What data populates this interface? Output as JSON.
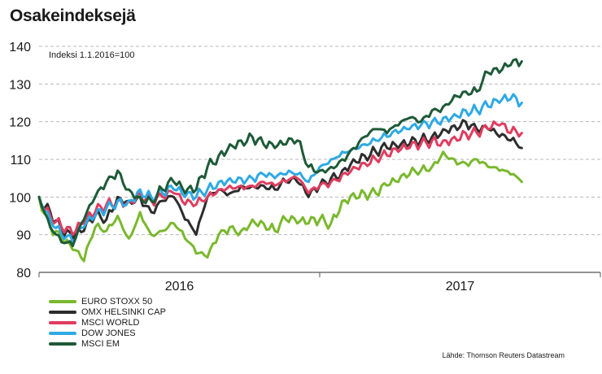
{
  "title": "Osakeindeksejä",
  "note": "Indeksi 1.1.2016=100",
  "source": "Lähde: Thomson Reuters Datastream",
  "chart_data": {
    "type": "line",
    "title": "Osakeindeksejä",
    "subtitle": "Indeksi 1.1.2016=100",
    "xlabel": "",
    "ylabel": "",
    "x_tick_labels": [
      "2016",
      "2017"
    ],
    "x_range": [
      0,
      2
    ],
    "y_ticks": [
      80,
      90,
      100,
      110,
      120,
      130,
      140
    ],
    "ylim": [
      80,
      140
    ],
    "grid": true,
    "legend_position": "bottom-left",
    "x": [
      0,
      0.04,
      0.08,
      0.12,
      0.16,
      0.2,
      0.24,
      0.28,
      0.32,
      0.36,
      0.4,
      0.44,
      0.48,
      0.52,
      0.56,
      0.6,
      0.64,
      0.68,
      0.72,
      0.76,
      0.8,
      0.84,
      0.88,
      0.92,
      0.96,
      1.0,
      1.04,
      1.08,
      1.12,
      1.16,
      1.2,
      1.24,
      1.28,
      1.32,
      1.36,
      1.4,
      1.44,
      1.48,
      1.52,
      1.56,
      1.6,
      1.64,
      1.68,
      1.72
    ],
    "series": [
      {
        "name": "EURO STOXX 50",
        "color": "#7ab82e",
        "values": [
          100,
          92,
          89,
          86,
          83,
          92,
          91,
          95,
          89,
          96,
          90,
          91,
          93,
          89,
          85,
          84,
          90,
          92,
          91,
          94,
          93,
          91,
          94,
          93,
          93,
          94,
          93,
          99,
          101,
          101,
          101,
          103,
          104,
          106,
          107,
          108,
          112,
          110,
          109,
          110,
          108,
          107,
          106,
          104
        ]
      },
      {
        "name": "OMX HELSINKI CAP",
        "color": "#2d2d2d",
        "values": [
          100,
          96,
          91,
          89,
          91,
          95,
          94,
          100,
          99,
          100,
          96,
          99,
          100,
          94,
          90,
          100,
          102,
          101,
          103,
          103,
          103,
          102,
          104,
          104,
          100,
          103,
          105,
          107,
          110,
          111,
          112,
          113,
          113,
          114,
          115,
          116,
          118,
          119,
          120,
          118,
          118,
          116,
          115,
          113
        ]
      },
      {
        "name": "MSCI WORLD",
        "color": "#e03c5f",
        "values": [
          100,
          95,
          92,
          90,
          93,
          96,
          98,
          99,
          99,
          101,
          99,
          100,
          101,
          98,
          98,
          100,
          102,
          103,
          103,
          103,
          104,
          103,
          104,
          105,
          101,
          103,
          104,
          106,
          108,
          109,
          110,
          111,
          112,
          113,
          114,
          115,
          115,
          116,
          117,
          117,
          118,
          119,
          117,
          117
        ]
      },
      {
        "name": "DOW JONES",
        "color": "#2fa9e3",
        "values": [
          100,
          94,
          90,
          88,
          92,
          95,
          97,
          99,
          99,
          102,
          100,
          101,
          102,
          100,
          100,
          102,
          104,
          105,
          105,
          105,
          106,
          105,
          106,
          106,
          104,
          108,
          110,
          112,
          113,
          114,
          115,
          116,
          117,
          118,
          119,
          120,
          121,
          122,
          123,
          123,
          124,
          125,
          126,
          125
        ]
      },
      {
        "name": "MSCI EM",
        "color": "#1e5a37",
        "values": [
          100,
          92,
          88,
          87,
          94,
          100,
          104,
          107,
          102,
          100,
          99,
          102,
          104,
          101,
          102,
          108,
          111,
          114,
          115,
          116,
          114,
          113,
          114,
          115,
          108,
          107,
          108,
          110,
          113,
          116,
          118,
          117,
          119,
          121,
          120,
          123,
          124,
          127,
          128,
          128,
          133,
          133,
          135,
          136
        ]
      }
    ]
  }
}
